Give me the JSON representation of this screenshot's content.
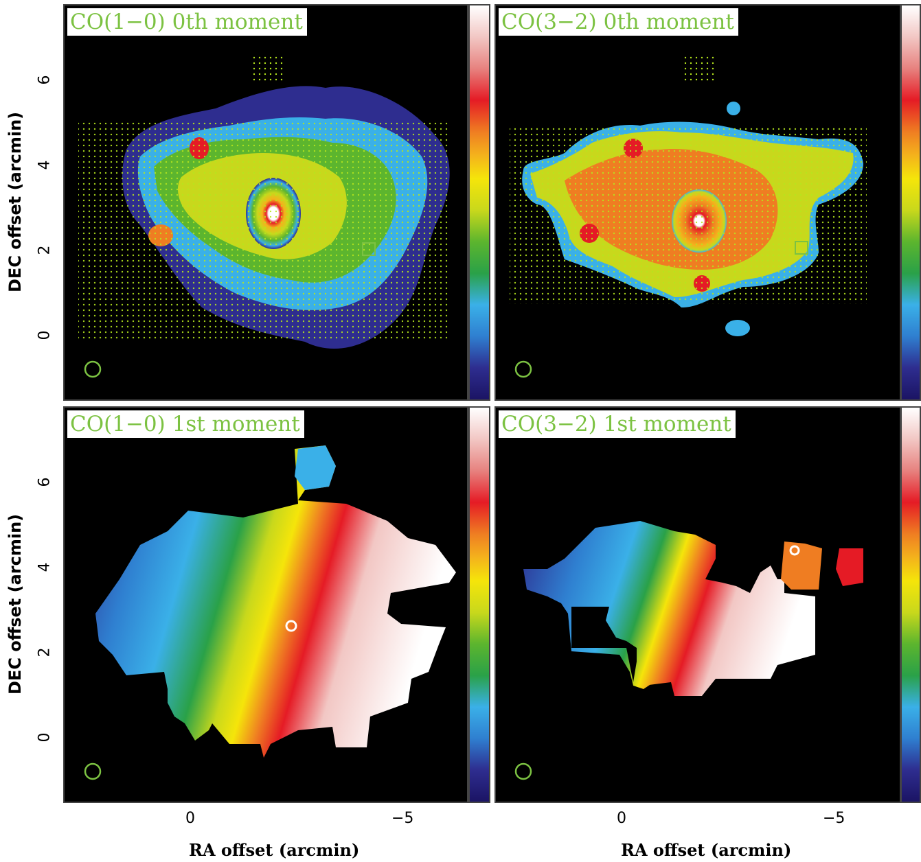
{
  "panels": {
    "tl": {
      "title": "CO(1−0) 0th moment"
    },
    "tr": {
      "title": "CO(3−2) 0th moment"
    },
    "bl": {
      "title": "CO(1−0) 1st moment"
    },
    "br": {
      "title": "CO(3−2) 1st moment"
    }
  },
  "axes": {
    "ylabel": "DEC offset (arcmin)",
    "xlabel": "RA offset (arcmin)",
    "y_ticks": [
      "6",
      "4",
      "2",
      "0"
    ],
    "x_ticks": [
      "0",
      "−5"
    ]
  },
  "colors": {
    "background": "#000000",
    "title_text": "#7cc242",
    "beam": "#7cc242",
    "contour_dots": "#b5e61d"
  },
  "icons": {
    "beam": "circle-outline",
    "reference_marker": "square-outline"
  }
}
